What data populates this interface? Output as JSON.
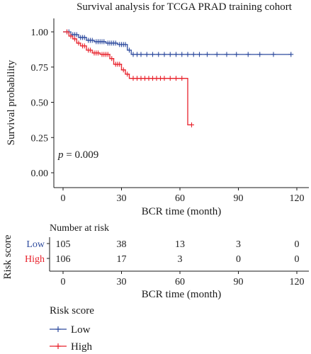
{
  "chart_data": {
    "type": "line",
    "subtype": "kaplan-meier",
    "title": "Survival analysis for TCGA PRAD training cohort",
    "xlabel": "BCR time (month)",
    "ylabel": "Survival probability",
    "xlim": [
      0,
      120
    ],
    "ylim": [
      0,
      1
    ],
    "xticks": [
      "0",
      "30",
      "60",
      "90",
      "120"
    ],
    "yticks": [
      "0.00",
      "0.25",
      "0.50",
      "0.75",
      "1.00"
    ],
    "p_value": {
      "label": "p",
      "text": " = 0.009"
    },
    "series": [
      {
        "name": "Low",
        "color": "#2e4b9e",
        "steps": [
          [
            0,
            1.0
          ],
          [
            4,
            0.98
          ],
          [
            8,
            0.96
          ],
          [
            12,
            0.94
          ],
          [
            16,
            0.93
          ],
          [
            22,
            0.92
          ],
          [
            28,
            0.91
          ],
          [
            33,
            0.87
          ],
          [
            35,
            0.84
          ],
          [
            117,
            0.84
          ]
        ],
        "censor_x": [
          2,
          3,
          5,
          6,
          7,
          9,
          10,
          11,
          13,
          14,
          15,
          17,
          18,
          19,
          20,
          21,
          23,
          24,
          25,
          26,
          27,
          29,
          30,
          31,
          32,
          34,
          36,
          38,
          40,
          43,
          46,
          49,
          52,
          55,
          58,
          61,
          64,
          67,
          70,
          74,
          79,
          84,
          89,
          95,
          101,
          108,
          117
        ]
      },
      {
        "name": "High",
        "color": "#e8212b",
        "steps": [
          [
            0,
            1.0
          ],
          [
            3,
            0.97
          ],
          [
            5,
            0.95
          ],
          [
            7,
            0.92
          ],
          [
            9,
            0.9
          ],
          [
            12,
            0.87
          ],
          [
            15,
            0.85
          ],
          [
            19,
            0.84
          ],
          [
            24,
            0.81
          ],
          [
            26,
            0.77
          ],
          [
            30,
            0.73
          ],
          [
            32,
            0.7
          ],
          [
            34,
            0.67
          ],
          [
            64,
            0.67
          ],
          [
            64,
            0.34
          ],
          [
            66,
            0.34
          ]
        ],
        "censor_x": [
          2,
          4,
          6,
          8,
          10,
          11,
          13,
          14,
          16,
          17,
          18,
          20,
          21,
          22,
          23,
          25,
          27,
          28,
          29,
          31,
          33,
          36,
          38,
          40,
          42,
          44,
          46,
          48,
          50,
          52,
          55,
          58,
          61,
          66
        ]
      }
    ],
    "risk_table": {
      "title": "Number at risk",
      "ylabel": "Risk score",
      "xlabel": "BCR time (month)",
      "times": [
        "0",
        "30",
        "60",
        "90",
        "120"
      ],
      "rows": [
        {
          "name": "Low",
          "color": "#2e4b9e",
          "values": [
            "105",
            "38",
            "13",
            "3",
            "0"
          ]
        },
        {
          "name": "High",
          "color": "#e8212b",
          "values": [
            "106",
            "17",
            "3",
            "0",
            "0"
          ]
        }
      ]
    },
    "legend": {
      "title": "Risk score",
      "position": "bottom-left",
      "items": [
        "Low",
        "High"
      ]
    }
  }
}
